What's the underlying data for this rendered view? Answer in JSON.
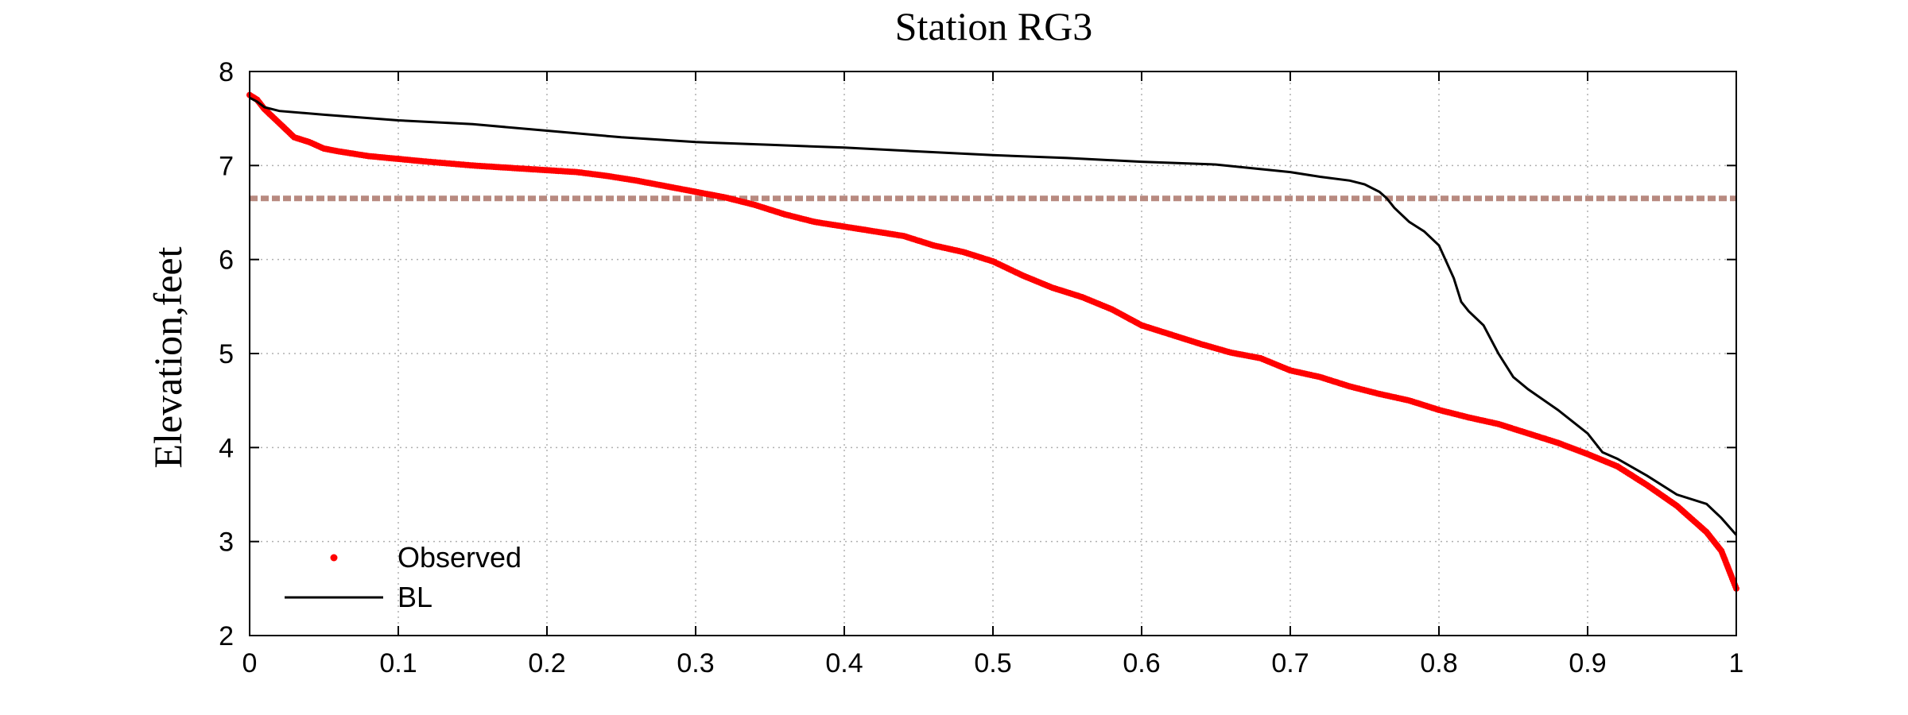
{
  "chart_data": {
    "type": "line",
    "title": "Station RG3",
    "xlabel": "",
    "ylabel": "Elevation,feet",
    "xlim": [
      0,
      1
    ],
    "ylim": [
      2,
      8
    ],
    "x_ticks": [
      "0",
      "0.1",
      "0.2",
      "0.3",
      "0.4",
      "0.5",
      "0.6",
      "0.7",
      "0.8",
      "0.9",
      "1"
    ],
    "y_ticks": [
      "2",
      "3",
      "4",
      "5",
      "6",
      "7",
      "8"
    ],
    "grid": true,
    "legend_placement": "bottom-left",
    "reference_line": {
      "y": 6.65,
      "color": "#b88a80"
    },
    "series": [
      {
        "name": "Observed",
        "style": "markers",
        "color": "#ff0000",
        "x": [
          0,
          0.005,
          0.01,
          0.02,
          0.03,
          0.04,
          0.05,
          0.06,
          0.08,
          0.1,
          0.12,
          0.15,
          0.18,
          0.2,
          0.22,
          0.24,
          0.26,
          0.28,
          0.3,
          0.32,
          0.34,
          0.36,
          0.38,
          0.4,
          0.42,
          0.44,
          0.46,
          0.48,
          0.5,
          0.52,
          0.54,
          0.56,
          0.58,
          0.6,
          0.62,
          0.64,
          0.66,
          0.68,
          0.7,
          0.72,
          0.74,
          0.76,
          0.78,
          0.8,
          0.82,
          0.84,
          0.86,
          0.88,
          0.9,
          0.92,
          0.94,
          0.96,
          0.98,
          0.99,
          0.995,
          1.0
        ],
        "y": [
          7.75,
          7.7,
          7.6,
          7.45,
          7.3,
          7.25,
          7.18,
          7.15,
          7.1,
          7.07,
          7.04,
          7.0,
          6.97,
          6.95,
          6.93,
          6.89,
          6.84,
          6.78,
          6.72,
          6.66,
          6.58,
          6.48,
          6.4,
          6.35,
          6.3,
          6.25,
          6.15,
          6.08,
          5.98,
          5.83,
          5.7,
          5.6,
          5.47,
          5.3,
          5.2,
          5.1,
          5.01,
          4.95,
          4.82,
          4.75,
          4.65,
          4.57,
          4.5,
          4.4,
          4.32,
          4.25,
          4.15,
          4.05,
          3.93,
          3.8,
          3.6,
          3.38,
          3.1,
          2.9,
          2.7,
          2.5
        ]
      },
      {
        "name": "BL",
        "style": "line",
        "color": "#000000",
        "x": [
          0,
          0.005,
          0.01,
          0.02,
          0.05,
          0.1,
          0.15,
          0.2,
          0.25,
          0.3,
          0.35,
          0.4,
          0.45,
          0.5,
          0.55,
          0.6,
          0.65,
          0.7,
          0.72,
          0.74,
          0.75,
          0.76,
          0.765,
          0.77,
          0.78,
          0.79,
          0.8,
          0.81,
          0.815,
          0.82,
          0.83,
          0.84,
          0.85,
          0.86,
          0.88,
          0.9,
          0.91,
          0.92,
          0.94,
          0.96,
          0.98,
          0.99,
          1.0
        ],
        "y": [
          7.72,
          7.68,
          7.62,
          7.58,
          7.54,
          7.48,
          7.44,
          7.37,
          7.3,
          7.25,
          7.22,
          7.19,
          7.15,
          7.11,
          7.08,
          7.04,
          7.01,
          6.93,
          6.88,
          6.84,
          6.8,
          6.72,
          6.65,
          6.55,
          6.4,
          6.3,
          6.15,
          5.8,
          5.55,
          5.45,
          5.3,
          5.0,
          4.75,
          4.62,
          4.4,
          4.15,
          3.95,
          3.88,
          3.7,
          3.5,
          3.4,
          3.25,
          3.07
        ]
      }
    ]
  }
}
